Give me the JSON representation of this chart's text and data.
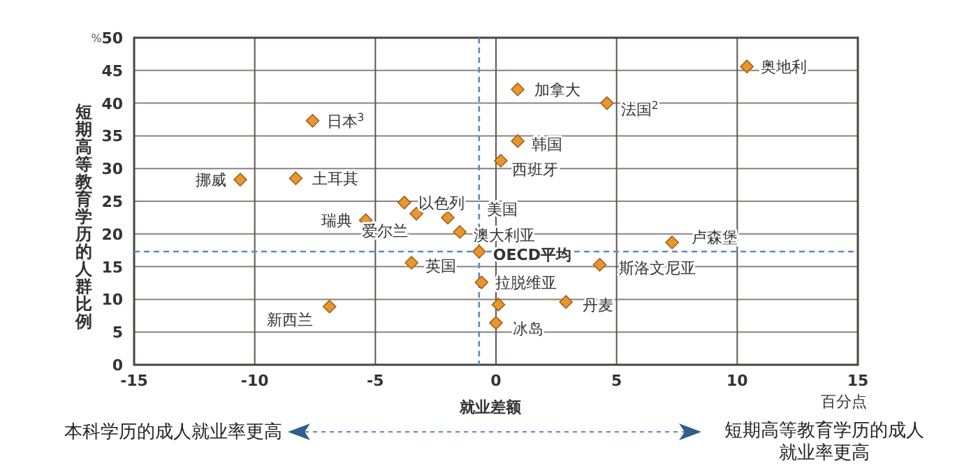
{
  "chart_data": {
    "type": "scatter",
    "xlabel": "就业差额",
    "ylabel": "短期高等教育学历的人群比例",
    "x": [
      10.4,
      0.9,
      4.6,
      -7.6,
      0.9,
      0.2,
      -10.6,
      -8.3,
      -3.8,
      -3.3,
      -2.0,
      -1.5,
      -5.4,
      -0.7,
      7.3,
      -3.5,
      4.3,
      -0.6,
      0.1,
      2.9,
      -6.9,
      0.0
    ],
    "values": [
      45.6,
      42.1,
      40.0,
      37.3,
      34.2,
      31.2,
      28.3,
      28.5,
      24.8,
      23.1,
      22.5,
      20.3,
      22.1,
      17.3,
      18.7,
      15.6,
      15.3,
      12.6,
      9.2,
      9.6,
      8.9,
      6.4
    ],
    "color": "#e8962e",
    "marker": "diamond",
    "xlim": [
      -15,
      15
    ],
    "ylim": [
      0,
      50
    ],
    "xticks": [
      -15,
      -10,
      -5,
      0,
      5,
      10,
      15
    ],
    "yticks": [
      0,
      5,
      10,
      15,
      20,
      25,
      30,
      35,
      40,
      45,
      50
    ],
    "grid": true,
    "ref_lines": [
      {
        "axis": "x",
        "value": -0.7,
        "color": "#5b8ac6",
        "line_style": "dashed"
      },
      {
        "axis": "y",
        "value": 17.3,
        "color": "#5b8ac6",
        "line_style": "dashed"
      }
    ],
    "annotations": [
      {
        "text": "奥地利",
        "x": 10.4,
        "y": 45.6
      },
      {
        "text": "加拿大",
        "x": 0.9,
        "y": 42.1
      },
      {
        "text": "法国$^{2}$",
        "x": 4.6,
        "y": 40.0
      },
      {
        "text": "日本$^{3}$",
        "x": -7.6,
        "y": 37.3
      },
      {
        "text": "韩国",
        "x": 0.9,
        "y": 34.2
      },
      {
        "text": "西班牙",
        "x": 0.2,
        "y": 31.2
      },
      {
        "text": "挪威",
        "x": -10.6,
        "y": 28.3
      },
      {
        "text": "土耳其",
        "x": -8.3,
        "y": 28.5
      },
      {
        "text": "以色列",
        "x": -3.8,
        "y": 24.8
      },
      {
        "text": "爱尔兰",
        "x": -3.3,
        "y": 23.1
      },
      {
        "text": "美国",
        "x": -2.0,
        "y": 22.5
      },
      {
        "text": "澳大利亚",
        "x": -1.5,
        "y": 20.3
      },
      {
        "text": "瑞典",
        "x": -5.4,
        "y": 22.1
      },
      {
        "text": "**OECD平均**",
        "x": -0.7,
        "y": 17.3
      },
      {
        "text": "卢森堡",
        "x": 7.3,
        "y": 18.7
      },
      {
        "text": "英国",
        "x": -3.5,
        "y": 15.6
      },
      {
        "text": "斯洛文尼亚",
        "x": 4.3,
        "y": 15.3
      },
      {
        "text": "拉脱维亚",
        "x": -0.6,
        "y": 12.6
      },
      {
        "text": "丹麦",
        "x": 2.9,
        "y": 9.6
      },
      {
        "text": "新西兰",
        "x": -6.9,
        "y": 8.9
      },
      {
        "text": "冰岛",
        "x": 0.0,
        "y": 6.4
      },
      "%",
      "百分点",
      "本科学历的成人就业率更高",
      "短期高等教育学历的成人就业率更高"
    ]
  }
}
